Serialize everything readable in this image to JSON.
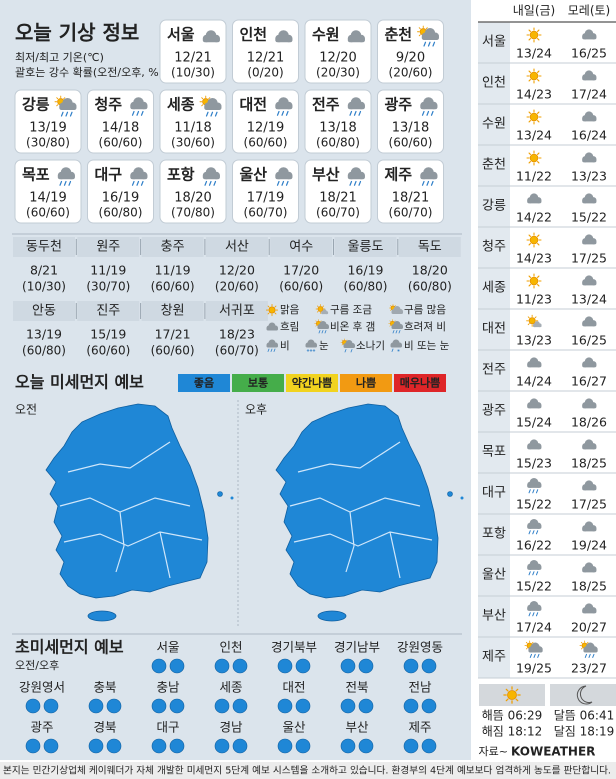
{
  "header": {
    "title": "오늘 기상 정보",
    "note1": "최저/최고 기온(℃)",
    "note2": "괄호는 강수 확률(오전/오후, %)"
  },
  "cards": [
    {
      "city": "서울",
      "temp": "12/21",
      "rain": "(10/30)"
    },
    {
      "city": "인천",
      "temp": "12/21",
      "rain": "(0/20)"
    },
    {
      "city": "수원",
      "temp": "12/20",
      "rain": "(20/30)"
    },
    {
      "city": "춘천",
      "temp": "9/20",
      "rain": "(20/60)"
    },
    {
      "city": "강릉",
      "temp": "13/19",
      "rain": "(30/80)"
    },
    {
      "city": "청주",
      "temp": "14/18",
      "rain": "(60/60)"
    },
    {
      "city": "세종",
      "temp": "11/18",
      "rain": "(30/60)"
    },
    {
      "city": "대전",
      "temp": "12/19",
      "rain": "(60/60)"
    },
    {
      "city": "전주",
      "temp": "13/18",
      "rain": "(60/80)"
    },
    {
      "city": "광주",
      "temp": "13/18",
      "rain": "(60/60)"
    },
    {
      "city": "목포",
      "temp": "14/19",
      "rain": "(60/60)"
    },
    {
      "city": "대구",
      "temp": "16/19",
      "rain": "(60/80)"
    },
    {
      "city": "포항",
      "temp": "18/20",
      "rain": "(70/80)"
    },
    {
      "city": "울산",
      "temp": "17/19",
      "rain": "(60/70)"
    },
    {
      "city": "부산",
      "temp": "18/21",
      "rain": "(60/70)"
    },
    {
      "city": "제주",
      "temp": "18/21",
      "rain": "(60/70)"
    }
  ],
  "table": [
    {
      "city": "동두천",
      "temp": "8/21",
      "rain": "(10/30)"
    },
    {
      "city": "원주",
      "temp": "11/19",
      "rain": "(30/70)"
    },
    {
      "city": "충주",
      "temp": "11/19",
      "rain": "(60/60)"
    },
    {
      "city": "서산",
      "temp": "12/20",
      "rain": "(20/60)"
    },
    {
      "city": "여수",
      "temp": "17/20",
      "rain": "(60/60)"
    },
    {
      "city": "울릉도",
      "temp": "16/19",
      "rain": "(60/80)"
    },
    {
      "city": "독도",
      "temp": "18/20",
      "rain": "(60/80)"
    },
    {
      "city": "안동",
      "temp": "13/19",
      "rain": "(60/80)"
    },
    {
      "city": "진주",
      "temp": "15/19",
      "rain": "(60/60)"
    },
    {
      "city": "창원",
      "temp": "17/21",
      "rain": "(60/60)"
    },
    {
      "city": "서귀포",
      "temp": "18/23",
      "rain": "(60/70)"
    }
  ],
  "legend": [
    "맑음",
    "구름 조금",
    "구름 많음",
    "흐림",
    "비온 후 갬",
    "흐려져 비",
    "비",
    "눈",
    "소나기",
    "비 또는 눈"
  ],
  "dust": {
    "title": "오늘 미세먼지 예보",
    "am": "오전",
    "pm": "오후",
    "levels": [
      {
        "label": "좋음",
        "color": "#1f87d6"
      },
      {
        "label": "보통",
        "color": "#45ad4a"
      },
      {
        "label": "약간나쁨",
        "color": "#f1d31f"
      },
      {
        "label": "나쁨",
        "color": "#f29a12"
      },
      {
        "label": "매우나쁨",
        "color": "#de2528"
      }
    ]
  },
  "fine_dust": {
    "title": "초미세먼지 예보",
    "note": "오전/오후",
    "regions": [
      "서울",
      "인천",
      "경기북부",
      "경기남부",
      "강원영동",
      "강원영서",
      "충북",
      "충남",
      "세종",
      "대전",
      "전북",
      "전남",
      "광주",
      "경북",
      "대구",
      "경남",
      "울산",
      "부산",
      "제주"
    ]
  },
  "forecast": {
    "headers": [
      "내일(금)",
      "모레(토)"
    ],
    "rows": [
      {
        "city": "서울",
        "d1": "13/24",
        "d2": "16/25"
      },
      {
        "city": "인천",
        "d1": "14/23",
        "d2": "17/24"
      },
      {
        "city": "수원",
        "d1": "13/24",
        "d2": "16/24"
      },
      {
        "city": "춘천",
        "d1": "11/22",
        "d2": "13/23"
      },
      {
        "city": "강릉",
        "d1": "14/22",
        "d2": "15/22"
      },
      {
        "city": "청주",
        "d1": "14/23",
        "d2": "17/25"
      },
      {
        "city": "세종",
        "d1": "11/23",
        "d2": "13/24"
      },
      {
        "city": "대전",
        "d1": "13/23",
        "d2": "16/25"
      },
      {
        "city": "전주",
        "d1": "14/24",
        "d2": "16/27"
      },
      {
        "city": "광주",
        "d1": "15/24",
        "d2": "18/26"
      },
      {
        "city": "목포",
        "d1": "15/23",
        "d2": "18/25"
      },
      {
        "city": "대구",
        "d1": "15/22",
        "d2": "17/25"
      },
      {
        "city": "포항",
        "d1": "16/22",
        "d2": "19/24"
      },
      {
        "city": "울산",
        "d1": "15/22",
        "d2": "18/25"
      },
      {
        "city": "부산",
        "d1": "17/24",
        "d2": "20/27"
      },
      {
        "city": "제주",
        "d1": "19/25",
        "d2": "23/27"
      }
    ]
  },
  "sun": [
    "해뜸 06:29",
    "해짐 18:12",
    "달뜸 06:41",
    "달짐 18:19"
  ],
  "source": {
    "label": "자료~",
    "brand": "KOWEATHER"
  },
  "footer": "본지는 민간기상업체 케이웨더가 자체 개발한 미세먼지 5단계 예보 시스템을 소개하고 있습니다. 환경부의 4단계 예보보다 엄격하게 농도를 판단합니다."
}
